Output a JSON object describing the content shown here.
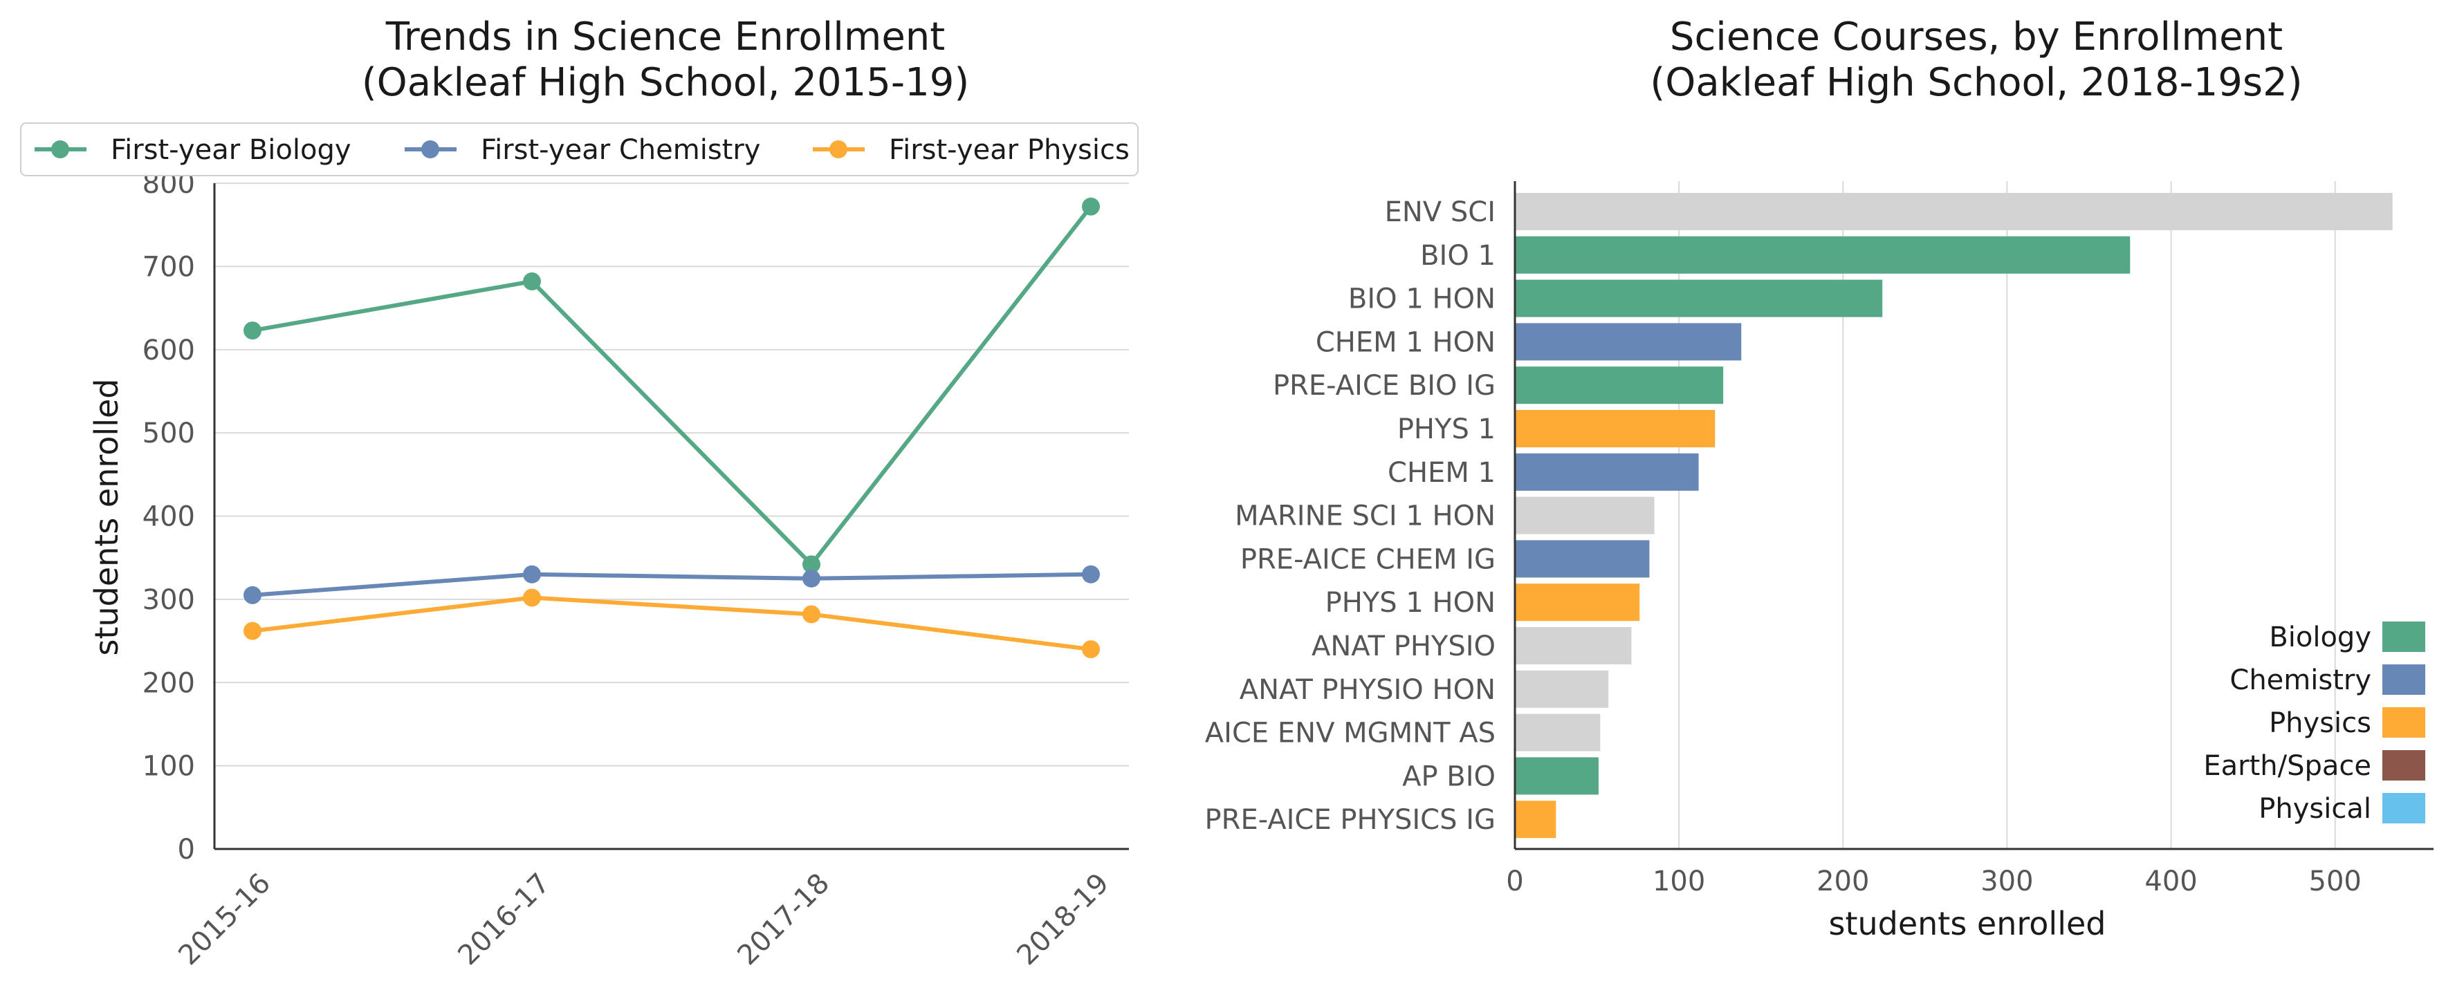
{
  "chart_data": [
    {
      "type": "line",
      "title": "Trends in Science Enrollment",
      "subtitle": "(Oakleaf High School, 2015-19)",
      "xlabel": "",
      "ylabel": "students enrolled",
      "categories": [
        "2015-16",
        "2016-17",
        "2017-18",
        "2018-19"
      ],
      "ylim": [
        0,
        800
      ],
      "yticks": [
        0,
        100,
        200,
        300,
        400,
        500,
        600,
        700,
        800
      ],
      "grid": "horizontal",
      "legend": "top",
      "series": [
        {
          "name": "First-year Biology",
          "color": "#55a886",
          "values": [
            623,
            682,
            342,
            772
          ]
        },
        {
          "name": "First-year Chemistry",
          "color": "#6787b7",
          "values": [
            305,
            330,
            325,
            330
          ]
        },
        {
          "name": "First-year Physics",
          "color": "#fdab35",
          "values": [
            262,
            302,
            282,
            240
          ]
        }
      ]
    },
    {
      "type": "bar",
      "orientation": "horizontal",
      "title": "Science Courses, by Enrollment",
      "subtitle": "(Oakleaf High School, 2018-19s2)",
      "xlabel": "students enrolled",
      "ylabel": "",
      "xlim": [
        0,
        560
      ],
      "xticks": [
        0,
        100,
        200,
        300,
        400,
        500
      ],
      "grid": "vertical",
      "legend": "bottom-right",
      "categories": [
        "ENV SCI",
        "BIO 1",
        "BIO 1 HON",
        "CHEM 1 HON",
        "PRE-AICE BIO IG",
        "PHYS 1",
        "CHEM 1",
        "MARINE SCI 1 HON",
        "PRE-AICE CHEM IG",
        "PHYS 1 HON",
        "ANAT PHYSIO",
        "ANAT PHYSIO HON",
        "AICE ENV MGMNT AS",
        "AP BIO",
        "PRE-AICE PHYSICS IG"
      ],
      "values": [
        535,
        375,
        224,
        138,
        127,
        122,
        112,
        85,
        82,
        76,
        71,
        57,
        52,
        51,
        25
      ],
      "bar_groups": [
        "Other",
        "Biology",
        "Biology",
        "Chemistry",
        "Biology",
        "Physics",
        "Chemistry",
        "Other",
        "Chemistry",
        "Physics",
        "Other",
        "Other",
        "Other",
        "Biology",
        "Physics"
      ],
      "group_colors": {
        "Biology": "#55a886",
        "Chemistry": "#6787b7",
        "Physics": "#fdab35",
        "Earth/Space": "#8c564b",
        "Physical": "#66c2ed",
        "Other": "#d3d3d3"
      },
      "legend_entries": [
        "Biology",
        "Chemistry",
        "Physics",
        "Earth/Space",
        "Physical"
      ]
    }
  ]
}
